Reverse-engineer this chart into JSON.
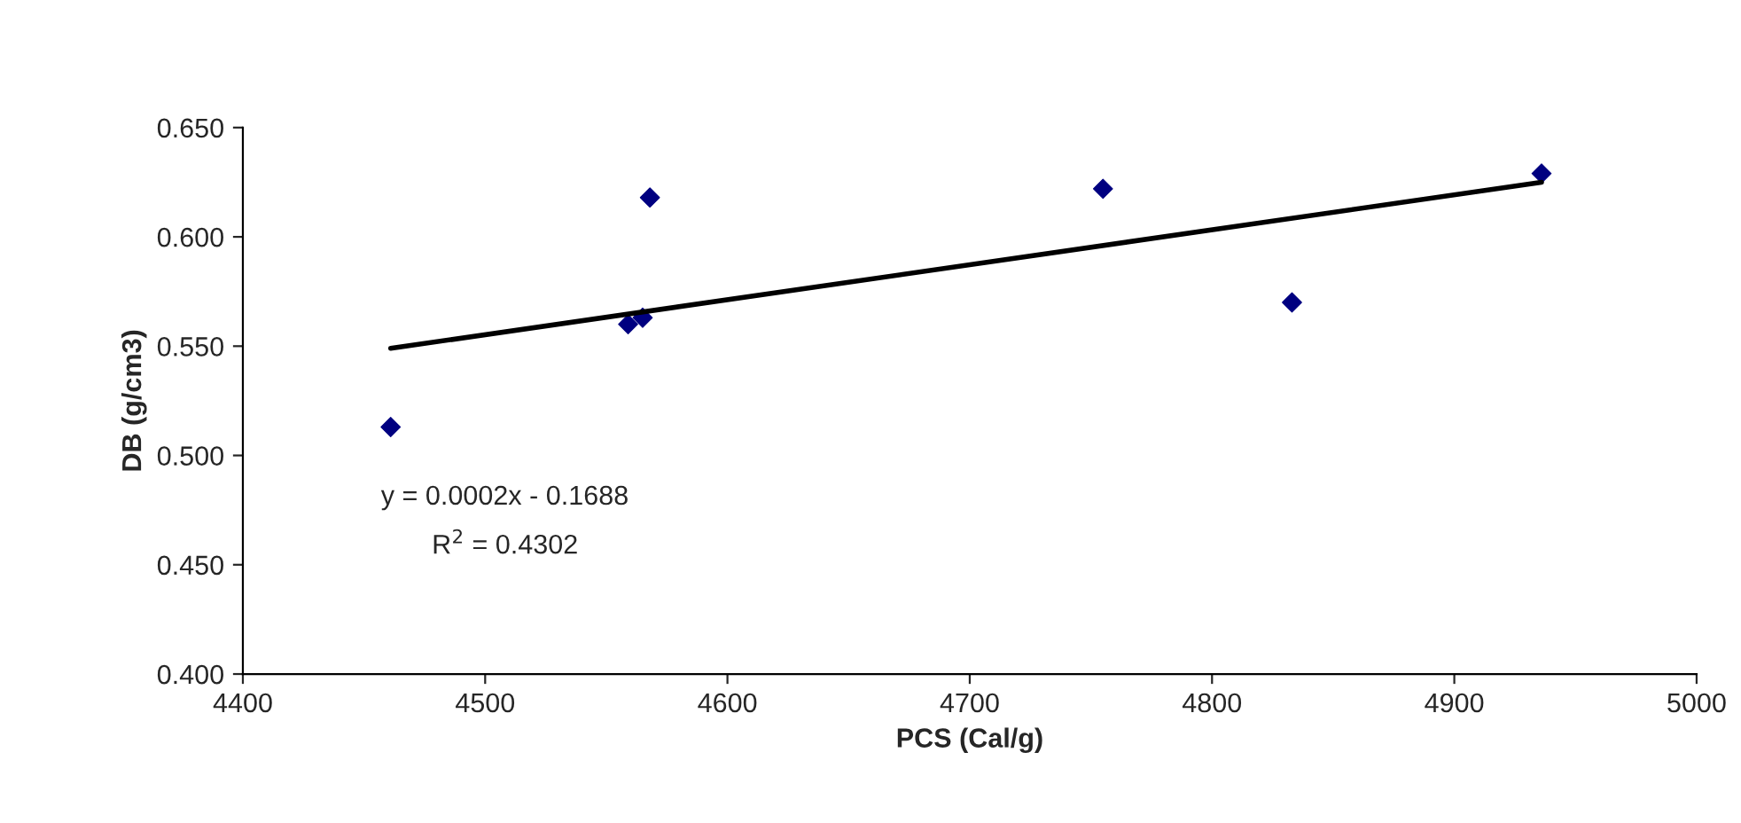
{
  "chart_data": {
    "type": "scatter",
    "xlabel": "PCS (Cal/g)",
    "ylabel": "DB (g/cm3)",
    "x": [
      4461,
      4559,
      4565,
      4568,
      4755,
      4833,
      4936
    ],
    "series": [
      {
        "color": "#000080",
        "values": [
          0.513,
          0.56,
          0.563,
          0.618,
          0.622,
          0.57,
          0.629
        ],
        "marker": "diamond"
      },
      {
        "type": "line",
        "color": "#000000",
        "x": [
          4461,
          4936
        ],
        "values": [
          0.549,
          0.625
        ],
        "marker": "none",
        "line_style": "solid"
      }
    ],
    "xlim": [
      4400,
      5000
    ],
    "xticks": [
      4400,
      4500,
      4600,
      4700,
      4800,
      4900,
      5000
    ],
    "ylim": [
      0.4,
      0.65
    ],
    "yticks": [
      {
        "value": 0.4,
        "label": "0.400"
      },
      {
        "value": 0.45,
        "label": "0.450"
      },
      {
        "value": 0.5,
        "label": "0.500"
      },
      {
        "value": 0.55,
        "label": "0.550"
      },
      {
        "value": 0.6,
        "label": "0.600"
      },
      {
        "value": 0.65,
        "label": "0.650"
      }
    ],
    "grid": false,
    "legend": false,
    "annotations": [
      "y = 0.0002x - 0.1688",
      "R$^{2}$ = 0.4302"
    ]
  }
}
